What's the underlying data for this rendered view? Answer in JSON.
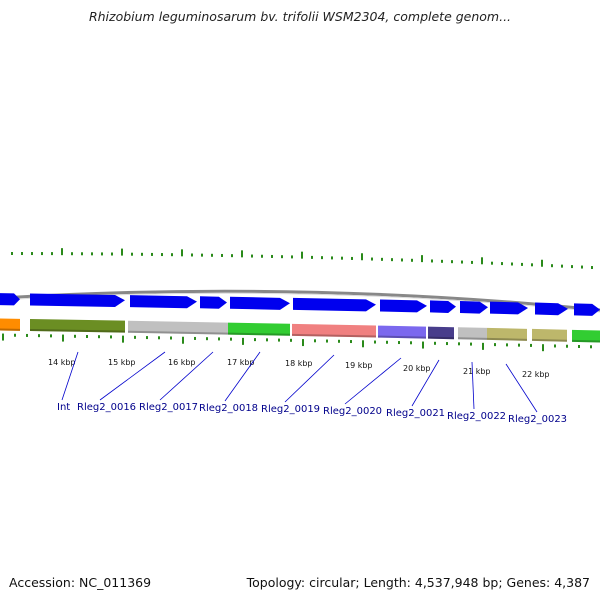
{
  "title": "Rhizobium leguminosarum bv. trifolii WSM2304, complete genom...",
  "footer": {
    "accession": "Accession: NC_011369",
    "summary": "Topology: circular; Length: 4,537,948 bp; Genes: 4,387"
  },
  "scale_labels": [
    "14 kbp",
    "15 kbp",
    "16 kbp",
    "17 kbp",
    "18 kbp",
    "19 kbp",
    "20 kbp",
    "21 kbp",
    "22 kbp"
  ],
  "gene_labels": [
    "Int",
    "Rleg2_0016",
    "Rleg2_0017",
    "Rleg2_0018",
    "Rleg2_0019",
    "Rleg2_0020",
    "Rleg2_0021",
    "Rleg2_0022",
    "Rleg2_0023"
  ],
  "colors": {
    "forward_strand": "#0000ee",
    "backbone": "#888888",
    "tick": "#2a8a1a",
    "leader_line": "#0000cc",
    "orange": "#ff8c00",
    "olive": "#6b8e23",
    "gray": "#c0c0c0",
    "green": "#32cd32",
    "salmon": "#f08080",
    "slate": "#7b68ee",
    "dark_slate": "#483d8b",
    "khaki": "#bdb76b"
  }
}
